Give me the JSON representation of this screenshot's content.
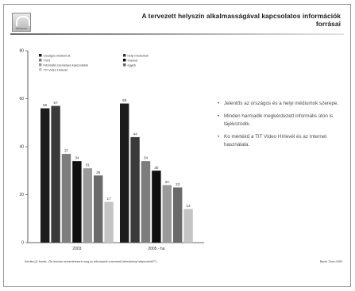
{
  "slide": {
    "title": "A tervezett helyszín alkalmasságával kapcsolatos információk forrásai",
    "logo_text": "ÁRTÉKOP",
    "bullets": [
      {
        "icon": "bullet-dot-icon",
        "text": "Jelentős az országos és a helyi médiumok szerepe."
      },
      {
        "icon": "bullet-dot-icon",
        "text": "Minden harmadik megkérdezett informális úton is tájékozódik."
      },
      {
        "icon": "bullet-dot-icon",
        "text": "Ko mértékű a TIT Video Hírlevél és az Internet használata."
      }
    ],
    "footnote": "Kérdés (A. forrás: „Ön honnan szerezte/szerzi meg az információt a tervezett létesítmény helyszínéről?”)",
    "source": "Bázis: Sum=1000"
  },
  "colors": {
    "background": "#ffffff",
    "bar_shades": [
      "#1c1c1c",
      "#3a3a3a",
      "#7d7d7d",
      "#101010",
      "#9a9a9a",
      "#6a6a6a",
      "#c4c4c4"
    ]
  },
  "chart_data": {
    "type": "bar",
    "categories": [
      "2003",
      "2005 - ha"
    ],
    "ylim": [
      0,
      80
    ],
    "yticks": [
      0,
      20,
      40,
      60,
      80
    ],
    "series": [
      {
        "name": "országos médiumok",
        "values": [
          56,
          58
        ]
      },
      {
        "name": "helyi médiumok",
        "values": [
          57,
          44
        ]
      },
      {
        "name": "TV/H",
        "values": [
          37,
          34
        ]
      },
      {
        "name": "Internet",
        "values": [
          34,
          30
        ]
      },
      {
        "name": "informális személyes kapcsolatok",
        "values": [
          31,
          24
        ]
      },
      {
        "name": "egyéb",
        "values": [
          28,
          23
        ]
      },
      {
        "name": "TIT Video Hírlevél",
        "values": [
          17,
          14
        ]
      }
    ],
    "legend_position": "top"
  }
}
